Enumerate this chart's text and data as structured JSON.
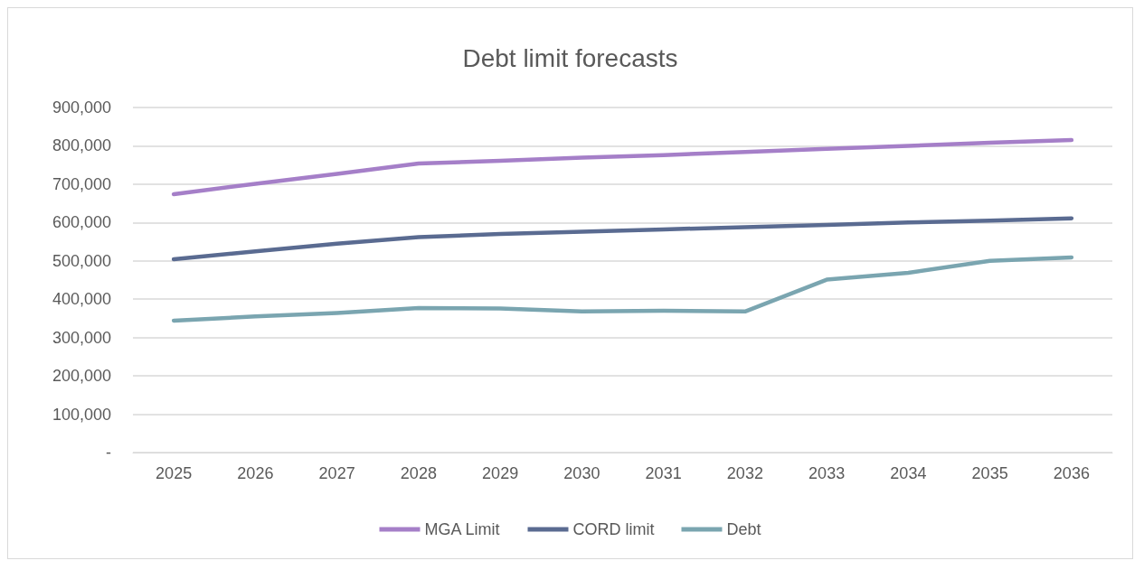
{
  "chart_data": {
    "type": "line",
    "title": "Debt limit forecasts",
    "categories": [
      "2025",
      "2026",
      "2027",
      "2028",
      "2029",
      "2030",
      "2031",
      "2032",
      "2033",
      "2034",
      "2035",
      "2036"
    ],
    "series": [
      {
        "name": "MGA Limit",
        "color": "#a57fc8",
        "values": [
          674000,
          701000,
          727000,
          754000,
          761000,
          769000,
          776000,
          784000,
          792000,
          800000,
          808000,
          815000
        ]
      },
      {
        "name": "CORD limit",
        "color": "#5a6b91",
        "values": [
          504000,
          525000,
          545000,
          562000,
          570000,
          576000,
          582000,
          588000,
          594000,
          600000,
          605000,
          611000
        ]
      },
      {
        "name": "Debt",
        "color": "#7aa5b0",
        "values": [
          344000,
          355000,
          364000,
          377000,
          376000,
          368000,
          370000,
          368000,
          451000,
          469000,
          500000,
          509000
        ]
      }
    ],
    "ylim": [
      0,
      900000
    ],
    "yticks": [
      {
        "value": 0,
        "label": "-"
      },
      {
        "value": 100000,
        "label": "100,000"
      },
      {
        "value": 200000,
        "label": "200,000"
      },
      {
        "value": 300000,
        "label": "300,000"
      },
      {
        "value": 400000,
        "label": "400,000"
      },
      {
        "value": 500000,
        "label": "500,000"
      },
      {
        "value": 600000,
        "label": "600,000"
      },
      {
        "value": 700000,
        "label": "700,000"
      },
      {
        "value": 800000,
        "label": "800,000"
      },
      {
        "value": 900000,
        "label": "900,000"
      }
    ],
    "grid": "y",
    "legend": "bottom",
    "marker": "none",
    "line_style": "solid"
  }
}
